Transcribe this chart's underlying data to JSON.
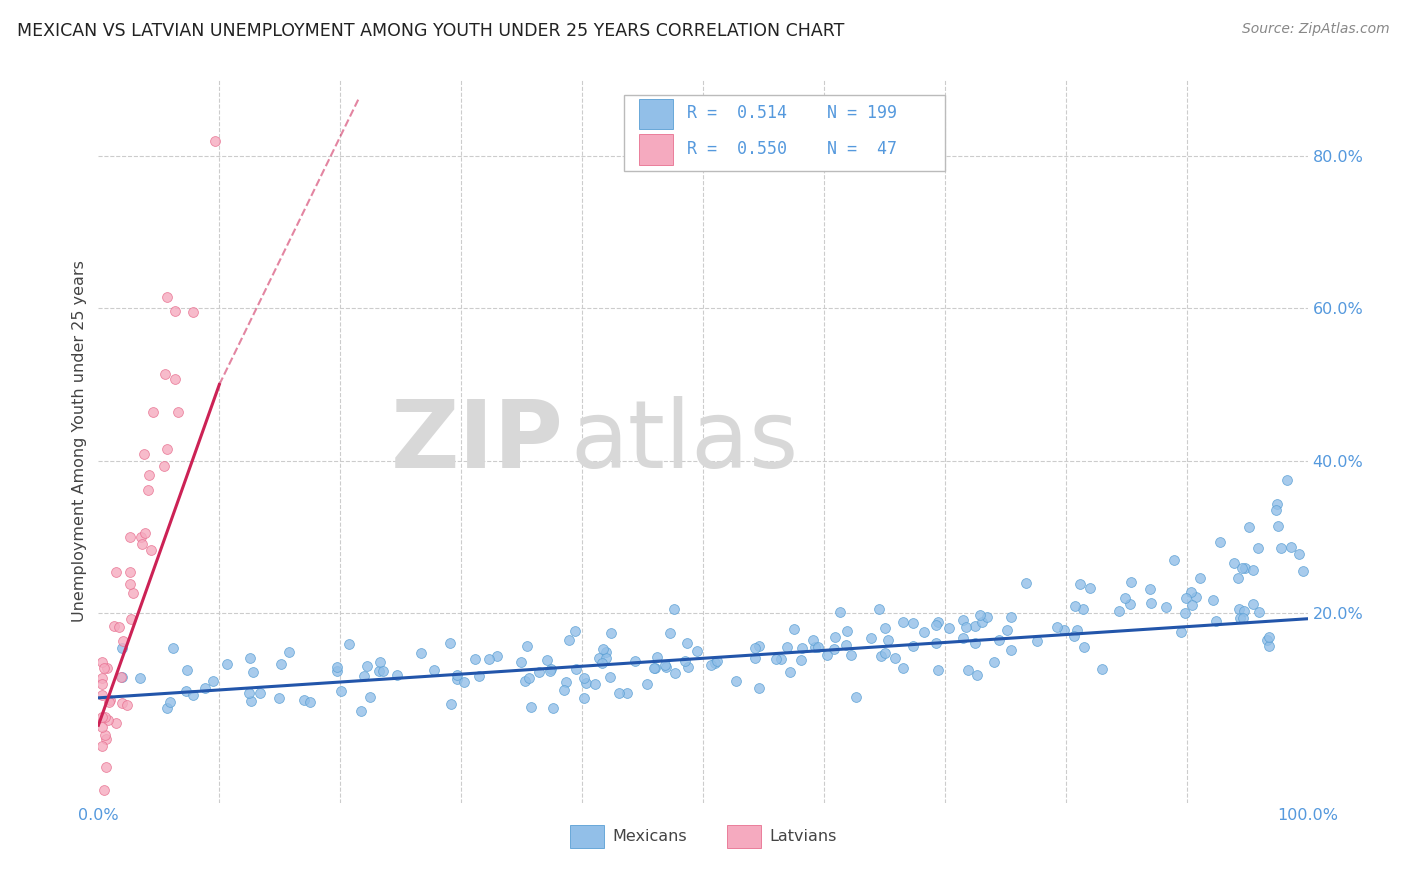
{
  "title": "MEXICAN VS LATVIAN UNEMPLOYMENT AMONG YOUTH UNDER 25 YEARS CORRELATION CHART",
  "source": "Source: ZipAtlas.com",
  "ylabel": "Unemployment Among Youth under 25 years",
  "watermark_zip": "ZIP",
  "watermark_atlas": "atlas",
  "xlim": [
    0.0,
    1.0
  ],
  "ylim": [
    -0.05,
    0.9
  ],
  "y_ticks": [
    0.0,
    0.2,
    0.4,
    0.6,
    0.8
  ],
  "y_tick_labels": [
    "",
    "20.0%",
    "40.0%",
    "60.0%",
    "80.0%"
  ],
  "x_ticks": [
    0.0,
    0.1,
    0.2,
    0.3,
    0.4,
    0.5,
    0.6,
    0.7,
    0.8,
    0.9,
    1.0
  ],
  "x_tick_labels": [
    "0.0%",
    "",
    "",
    "",
    "",
    "",
    "",
    "",
    "",
    "",
    "100.0%"
  ],
  "legend_mexicans": "Mexicans",
  "legend_latvians": "Latvians",
  "R_mexicans": "0.514",
  "N_mexicans": "199",
  "R_latvians": "0.550",
  "N_latvians": "47",
  "color_mexicans": "#92bfe8",
  "color_latvians": "#f5aabf",
  "color_mexicans_edge": "#5a9fd4",
  "color_latvians_edge": "#e87090",
  "color_mexicans_line": "#2255aa",
  "color_latvians_line": "#cc2255",
  "grid_color": "#cccccc",
  "background_color": "#ffffff",
  "title_color": "#222222",
  "source_color": "#888888",
  "tick_color": "#5599dd",
  "label_color": "#444444"
}
